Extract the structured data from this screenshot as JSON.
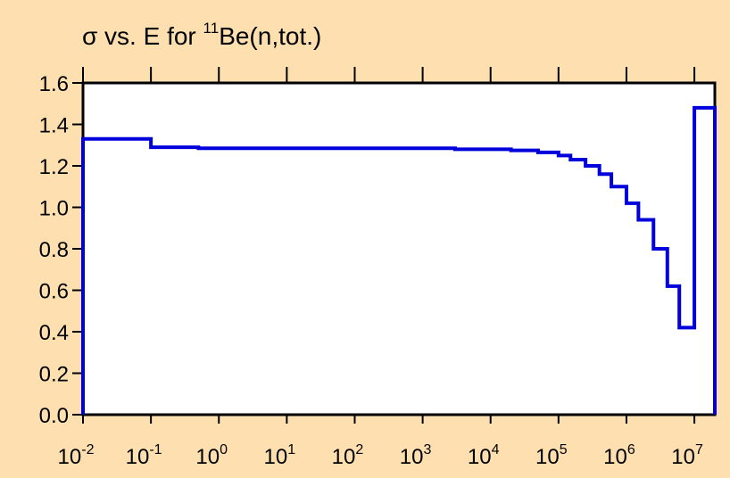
{
  "chart_data": {
    "type": "line",
    "step": true,
    "title": {
      "prefix": "σ vs. E for ",
      "superscript": "11",
      "suffix": "Be(n,tot.)"
    },
    "xlabel": "",
    "ylabel": "",
    "x_scale": "log",
    "xlim": [
      0.01,
      20000000
    ],
    "ylim": [
      0.0,
      1.6
    ],
    "grid": false,
    "y_ticks": [
      {
        "value": 0.0,
        "label": "0.0"
      },
      {
        "value": 0.2,
        "label": "0.2"
      },
      {
        "value": 0.4,
        "label": "0.4"
      },
      {
        "value": 0.6,
        "label": "0.6"
      },
      {
        "value": 0.8,
        "label": "0.8"
      },
      {
        "value": 1.0,
        "label": "1.0"
      },
      {
        "value": 1.2,
        "label": "1.2"
      },
      {
        "value": 1.4,
        "label": "1.4"
      },
      {
        "value": 1.6,
        "label": "1.6"
      }
    ],
    "x_ticks": [
      {
        "value": 0.01,
        "base": "10",
        "exp": "-2"
      },
      {
        "value": 0.1,
        "base": "10",
        "exp": "-1"
      },
      {
        "value": 1,
        "base": "10",
        "exp": "0"
      },
      {
        "value": 10,
        "base": "10",
        "exp": "1"
      },
      {
        "value": 100,
        "base": "10",
        "exp": "2"
      },
      {
        "value": 1000,
        "base": "10",
        "exp": "3"
      },
      {
        "value": 10000,
        "base": "10",
        "exp": "4"
      },
      {
        "value": 100000,
        "base": "10",
        "exp": "5"
      },
      {
        "value": 1000000,
        "base": "10",
        "exp": "6"
      },
      {
        "value": 10000000,
        "base": "10",
        "exp": "7"
      }
    ],
    "series": [
      {
        "color": "#0000dd",
        "x": [
          0.01,
          0.1,
          0.5,
          3000,
          20000,
          50000,
          100000,
          150000,
          250000,
          400000,
          600000,
          1000000,
          1500000,
          2500000,
          4000000,
          6000000,
          8500000,
          10000000,
          20000000,
          20000000
        ],
        "y": [
          1.33,
          1.29,
          1.285,
          1.28,
          1.275,
          1.265,
          1.25,
          1.23,
          1.2,
          1.16,
          1.1,
          1.02,
          0.94,
          0.8,
          0.62,
          0.42,
          0.42,
          1.48,
          1.48,
          0.0
        ]
      }
    ]
  }
}
